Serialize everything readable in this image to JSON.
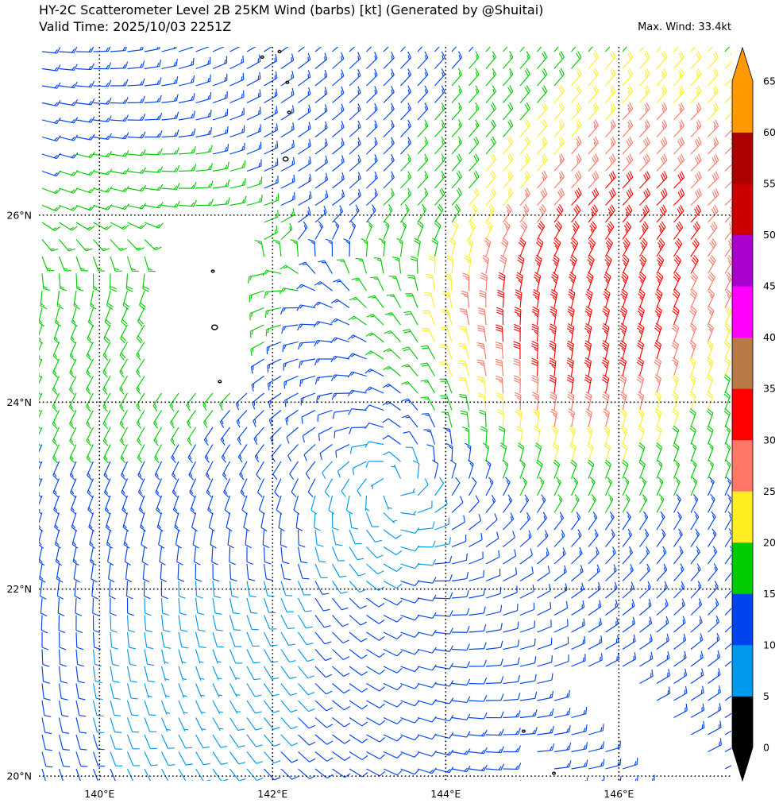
{
  "header": {
    "title_line1": "HY-2C Scatterometer Level 2B 25KM Wind (barbs) [kt] (Generated by @Shuitai)",
    "title_line2": "Valid Time: 2025/10/03 2251Z",
    "max_wind": "Max. Wind: 33.4kt"
  },
  "map": {
    "lon_range": [
      139.3,
      147.3
    ],
    "lat_range": [
      19.95,
      27.8
    ],
    "lon_gridlines": [
      140,
      142,
      144,
      146
    ],
    "lat_gridlines": [
      20,
      22,
      24,
      26
    ],
    "lon_labels": [
      "140°E",
      "142°E",
      "144°E",
      "146°E"
    ],
    "lat_labels": [
      "20°N",
      "22°N",
      "24°N",
      "26°N"
    ],
    "gridline_style": "dotted",
    "swath_gap": "no-data region around 140.7–141.8°E, 24.1–26.0°N and east of 144.8°E south of 21°N",
    "cyclone_center": {
      "lon": 143.4,
      "lat": 23.1
    },
    "islands": [
      {
        "lon": 141.31,
        "lat": 25.4
      },
      {
        "lon": 141.33,
        "lat": 24.8
      },
      {
        "lon": 141.39,
        "lat": 24.22
      },
      {
        "lon": 142.17,
        "lat": 27.42
      },
      {
        "lon": 142.19,
        "lat": 27.1
      },
      {
        "lon": 142.15,
        "lat": 26.6
      },
      {
        "lon": 142.08,
        "lat": 27.75
      },
      {
        "lon": 141.88,
        "lat": 27.69
      },
      {
        "lon": 144.9,
        "lat": 20.48
      },
      {
        "lon": 145.25,
        "lat": 20.03
      }
    ]
  },
  "colorbar": {
    "unit": "kt",
    "boundaries": [
      0,
      5,
      10,
      15,
      20,
      25,
      30,
      35,
      40,
      45,
      50,
      55,
      60,
      65
    ],
    "labels": [
      "0",
      "5",
      "10",
      "15",
      "20",
      "25",
      "30",
      "35",
      "40",
      "45",
      "50",
      "55",
      "60",
      "65"
    ],
    "colors": [
      "#000000",
      "#0099ee",
      "#0044ee",
      "#00cc00",
      "#ffee22",
      "#ff7766",
      "#ff0000",
      "#b87848",
      "#ff00ff",
      "#aa00cc",
      "#cc0000",
      "#aa0000",
      "#ff9900"
    ],
    "extend": "both"
  }
}
